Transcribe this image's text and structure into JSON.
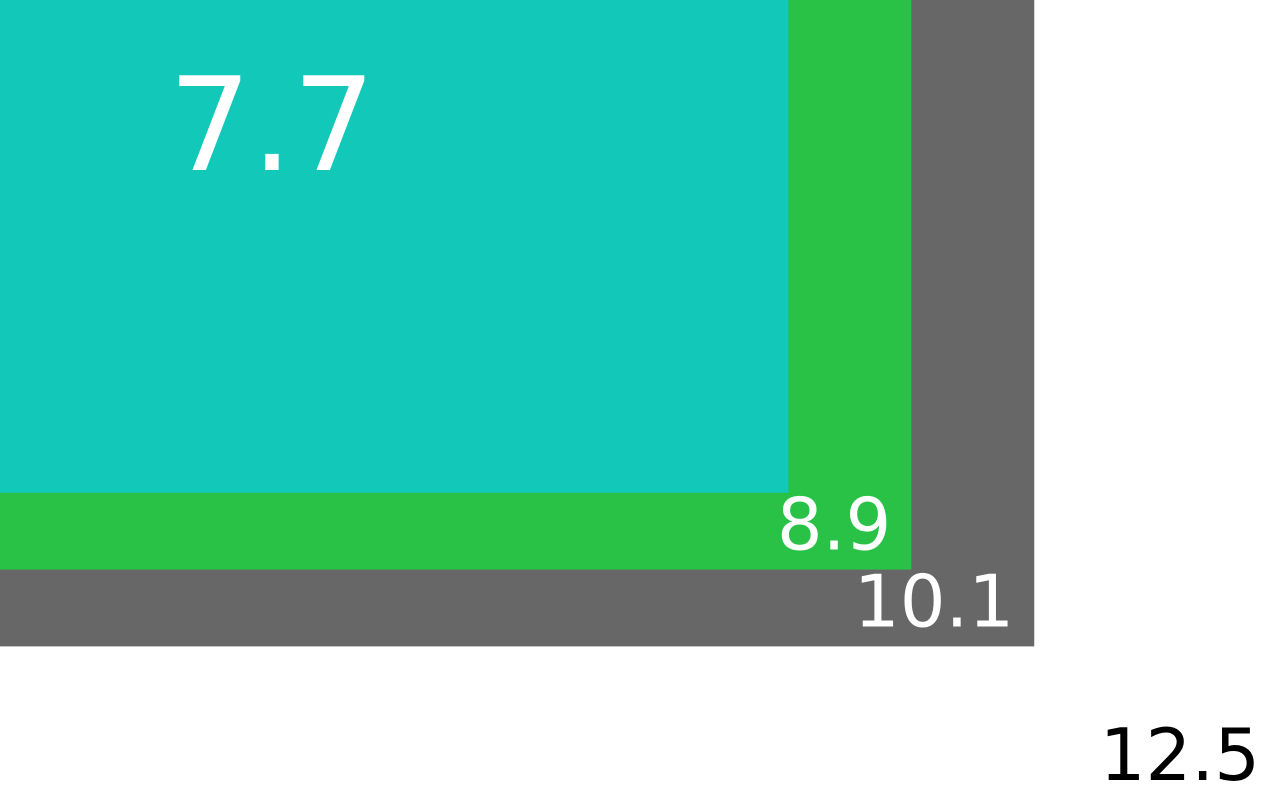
{
  "chart_data": {
    "type": "nested-rectangles",
    "values": [
      12.5,
      10.1,
      8.9,
      7.7
    ],
    "labels": [
      "12.5",
      "10.1",
      "8.9",
      "7.7"
    ],
    "colors": [
      "#ffffff",
      "#676767",
      "#29c247",
      "#12c8b8"
    ],
    "label_colors": [
      "#000000",
      "#ffffff",
      "#ffffff",
      "#ffffff"
    ]
  }
}
